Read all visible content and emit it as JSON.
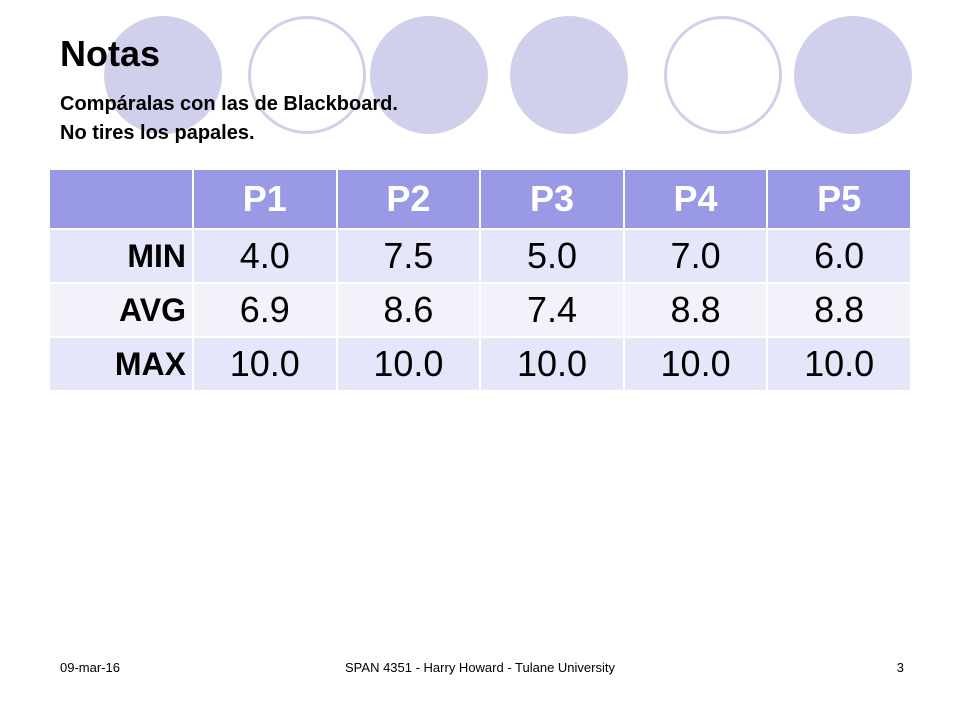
{
  "slide": {
    "title": "Notas",
    "subtitle_lines": [
      "Compáralas con las de Blackboard.",
      "No tires los papales."
    ]
  },
  "table": {
    "header": [
      "",
      "P1",
      "P2",
      "P3",
      "P4",
      "P5"
    ],
    "rows": [
      {
        "label": "MIN",
        "values": [
          "4.0",
          "7.5",
          "5.0",
          "7.0",
          "6.0"
        ]
      },
      {
        "label": "AVG",
        "values": [
          "6.9",
          "8.6",
          "7.4",
          "8.8",
          "8.8"
        ]
      },
      {
        "label": "MAX",
        "values": [
          "10.0",
          "10.0",
          "10.0",
          "10.0",
          "10.0"
        ]
      }
    ]
  },
  "footer": {
    "date": "09-mar-16",
    "center": "SPAN 4351 - Harry Howard - Tulane University",
    "page": "3"
  },
  "colors": {
    "circle": "#d0d0ec",
    "header_bg": "#9999e6",
    "row_odd": "#e6e6fa",
    "row_even": "#f2f2fb"
  }
}
